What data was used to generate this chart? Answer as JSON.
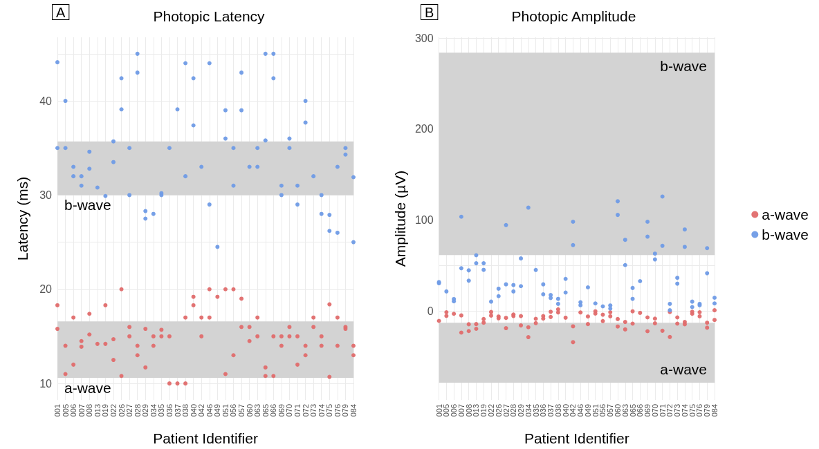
{
  "chart_data": [
    {
      "type": "scatter",
      "title": "Photopic Latency",
      "xlabel": "Patient Identifier",
      "ylabel": "Latency (ms)",
      "annotations": [
        "A"
      ],
      "categories": [
        "001",
        "005",
        "006",
        "007",
        "008",
        "013",
        "019",
        "022",
        "026",
        "027",
        "028",
        "029",
        "034",
        "035",
        "036",
        "037",
        "038",
        "040",
        "042",
        "046",
        "049",
        "051",
        "056",
        "057",
        "060",
        "063",
        "065",
        "066",
        "069",
        "070",
        "071",
        "072",
        "073",
        "074",
        "075",
        "076",
        "079",
        "084"
      ],
      "series": [
        {
          "color": "#e06c6c",
          "x": [
            "001",
            "001",
            "005",
            "005",
            "006",
            "006",
            "007",
            "007",
            "008",
            "008",
            "013",
            "019",
            "019",
            "022",
            "022",
            "026",
            "026",
            "027",
            "027",
            "028",
            "028",
            "029",
            "029",
            "034",
            "034",
            "035",
            "035",
            "036",
            "036",
            "037",
            "038",
            "038",
            "040",
            "040",
            "042",
            "042",
            "046",
            "046",
            "049",
            "051",
            "051",
            "056",
            "056",
            "057",
            "057",
            "060",
            "060",
            "063",
            "063",
            "065",
            "065",
            "066",
            "066",
            "069",
            "069",
            "070",
            "070",
            "071",
            "071",
            "072",
            "072",
            "073",
            "073",
            "074",
            "074",
            "075",
            "075",
            "076",
            "076",
            "079",
            "079",
            "084",
            "084"
          ],
          "values": [
            18.3,
            15.8,
            14.0,
            11.0,
            17.0,
            12.0,
            14.5,
            13.9,
            17.4,
            15.2,
            14.2,
            18.3,
            14.2,
            14.7,
            12.5,
            20.0,
            10.8,
            16.0,
            15.0,
            14.0,
            13.0,
            15.8,
            11.7,
            15.0,
            14.0,
            15.7,
            15.0,
            15.0,
            10.0,
            10.0,
            17.0,
            10.0,
            19.2,
            18.3,
            17.0,
            15.0,
            20.0,
            17.0,
            19.2,
            20.0,
            11.0,
            20.0,
            13.0,
            19.0,
            16.0,
            16.0,
            14.5,
            17.0,
            15.0,
            11.7,
            10.8,
            15.0,
            10.8,
            15.0,
            14.0,
            16.0,
            15.0,
            15.0,
            12.0,
            14.0,
            13.0,
            17.0,
            16.0,
            15.0,
            14.0,
            18.4,
            10.7,
            17.0,
            14.0,
            16.0,
            15.8,
            14.0,
            13.0
          ]
        },
        {
          "color": "#6f9be6",
          "x": [
            "001",
            "001",
            "005",
            "005",
            "006",
            "006",
            "007",
            "007",
            "008",
            "008",
            "013",
            "019",
            "022",
            "022",
            "026",
            "026",
            "027",
            "027",
            "028",
            "028",
            "029",
            "029",
            "034",
            "035",
            "035",
            "036",
            "037",
            "038",
            "038",
            "040",
            "040",
            "042",
            "046",
            "046",
            "049",
            "051",
            "051",
            "056",
            "056",
            "057",
            "057",
            "060",
            "063",
            "063",
            "065",
            "065",
            "066",
            "066",
            "069",
            "069",
            "070",
            "070",
            "071",
            "071",
            "072",
            "072",
            "073",
            "074",
            "074",
            "075",
            "075",
            "076",
            "076",
            "079",
            "079",
            "084",
            "084"
          ],
          "values": [
            44.1,
            35.0,
            40.0,
            35.0,
            33.0,
            32.0,
            32.0,
            31.0,
            34.6,
            32.8,
            30.8,
            29.9,
            35.7,
            33.5,
            42.4,
            39.1,
            35.0,
            30.0,
            45.0,
            43.0,
            28.3,
            27.5,
            28.0,
            30.2,
            30.0,
            35.0,
            39.1,
            44.0,
            32.0,
            42.4,
            37.4,
            33.0,
            44.0,
            29.0,
            24.5,
            39.0,
            36.0,
            35.0,
            31.0,
            43.0,
            39.0,
            33.0,
            35.0,
            33.0,
            45.0,
            35.8,
            45.0,
            42.4,
            31.0,
            30.0,
            36.0,
            35.0,
            31.0,
            29.0,
            40.0,
            37.7,
            32.0,
            30.0,
            28.0,
            27.9,
            26.2,
            33.0,
            26.0,
            35.0,
            34.3,
            31.9,
            25.0
          ]
        }
      ],
      "ylim": [
        8.25,
        46.75
      ],
      "yticks": [
        10,
        20,
        {
          "value": 25,
          "label": null
        },
        30,
        40,
        {
          "value": 45,
          "label": null
        }
      ],
      "bands": [
        {
          "axis": "y",
          "from": 30,
          "to": 35.7,
          "label": "b-wave",
          "color": "#d3d3d3"
        },
        {
          "axis": "y",
          "from": 10.6,
          "to": 16.6,
          "label": "a-wave",
          "color": "#d3d3d3"
        }
      ],
      "grid": true,
      "marker": "circle"
    },
    {
      "type": "scatter",
      "title": "Photopic Amplitude",
      "xlabel": "Patient Identifier",
      "ylabel": "Amplitude (µV)",
      "annotations": [
        "B"
      ],
      "categories": [
        "001",
        "005",
        "006",
        "007",
        "008",
        "013",
        "019",
        "022",
        "026",
        "027",
        "028",
        "029",
        "034",
        "035",
        "036",
        "037",
        "038",
        "040",
        "042",
        "046",
        "049",
        "051",
        "056",
        "057",
        "060",
        "063",
        "065",
        "066",
        "069",
        "070",
        "071",
        "072",
        "073",
        "074",
        "075",
        "076",
        "079",
        "084"
      ],
      "series": [
        {
          "name": "a-wave",
          "color": "#e06c6c",
          "x": [
            "001",
            "005",
            "005",
            "006",
            "007",
            "007",
            "008",
            "008",
            "013",
            "013",
            "019",
            "019",
            "022",
            "022",
            "026",
            "026",
            "027",
            "027",
            "028",
            "028",
            "029",
            "029",
            "034",
            "034",
            "035",
            "035",
            "036",
            "036",
            "037",
            "037",
            "038",
            "038",
            "040",
            "042",
            "042",
            "046",
            "049",
            "049",
            "051",
            "051",
            "056",
            "056",
            "057",
            "057",
            "060",
            "060",
            "063",
            "063",
            "065",
            "065",
            "066",
            "069",
            "069",
            "070",
            "070",
            "071",
            "072",
            "072",
            "073",
            "073",
            "074",
            "074",
            "075",
            "075",
            "076",
            "076",
            "079",
            "079",
            "084",
            "084"
          ],
          "values": [
            -11.0,
            -1.5,
            -5.5,
            -3.2,
            -5.0,
            -23.9,
            -14.7,
            -22.2,
            -14.5,
            -19.7,
            -9.0,
            -13.0,
            -1.2,
            -5.2,
            -6.2,
            -8.2,
            -7.7,
            -19.0,
            -4.0,
            -5.7,
            -5.7,
            -16.0,
            -18.0,
            -28.9,
            -8.7,
            -13.5,
            -5.7,
            -8.5,
            -1.0,
            -6.7,
            1.7,
            -1.7,
            -7.5,
            -17.0,
            -34.4,
            -1.7,
            -6.2,
            -14.5,
            -0.5,
            -3.0,
            -4.2,
            -11.2,
            -1.5,
            -6.0,
            -9.0,
            -17.2,
            -12.2,
            -20.4,
            -0.5,
            -14.0,
            -2.2,
            -7.2,
            -22.4,
            -8.5,
            -13.7,
            -21.9,
            -28.7,
            -1.2,
            -7.2,
            -14.0,
            -12.2,
            -14.7,
            -1.0,
            -3.2,
            -1.5,
            -6.0,
            -13.0,
            -18.5,
            0.7,
            -10.0
          ]
        },
        {
          "name": "b-wave",
          "color": "#6f9be6",
          "x": [
            "001",
            "001",
            "005",
            "006",
            "006",
            "007",
            "007",
            "008",
            "008",
            "013",
            "013",
            "019",
            "019",
            "022",
            "026",
            "026",
            "027",
            "027",
            "028",
            "028",
            "029",
            "029",
            "034",
            "035",
            "036",
            "036",
            "037",
            "037",
            "038",
            "038",
            "040",
            "040",
            "042",
            "042",
            "046",
            "046",
            "049",
            "051",
            "056",
            "057",
            "057",
            "060",
            "060",
            "063",
            "063",
            "065",
            "065",
            "066",
            "069",
            "069",
            "070",
            "070",
            "071",
            "071",
            "072",
            "072",
            "073",
            "073",
            "074",
            "074",
            "075",
            "075",
            "076",
            "076",
            "079",
            "079",
            "084",
            "084"
          ],
          "values": [
            31.7,
            30.4,
            21.4,
            13.0,
            10.5,
            103.6,
            46.9,
            44.6,
            33.2,
            61.2,
            52.4,
            52.4,
            45.1,
            10.2,
            24.4,
            16.2,
            94.4,
            29.2,
            28.4,
            21.4,
            57.7,
            27.2,
            113.6,
            45.0,
            29.2,
            18.2,
            17.5,
            14.2,
            13.2,
            7.7,
            35.2,
            20.2,
            98.1,
            72.4,
            9.5,
            6.2,
            25.9,
            8.2,
            5.0,
            6.0,
            2.5,
            120.6,
            105.6,
            78.2,
            50.4,
            25.2,
            13.2,
            32.7,
            98.1,
            81.7,
            63.0,
            56.6,
            125.8,
            71.6,
            7.7,
            0.7,
            36.4,
            29.9,
            89.6,
            70.4,
            10.2,
            4.2,
            7.7,
            6.2,
            69.0,
            41.4,
            14.5,
            8.2
          ]
        }
      ],
      "ylim": [
        -98,
        301
      ],
      "yticks": [
        0,
        {
          "value": 50,
          "label": null
        },
        100,
        200,
        300
      ],
      "bands": [
        {
          "axis": "y",
          "from": 61.5,
          "to": 284,
          "label": "b-wave",
          "color": "#d3d3d3"
        },
        {
          "axis": "y",
          "from": -79,
          "to": -13,
          "label": "a-wave",
          "color": "#d3d3d3"
        }
      ],
      "grid": true,
      "legend": "right",
      "marker": "circle"
    }
  ]
}
